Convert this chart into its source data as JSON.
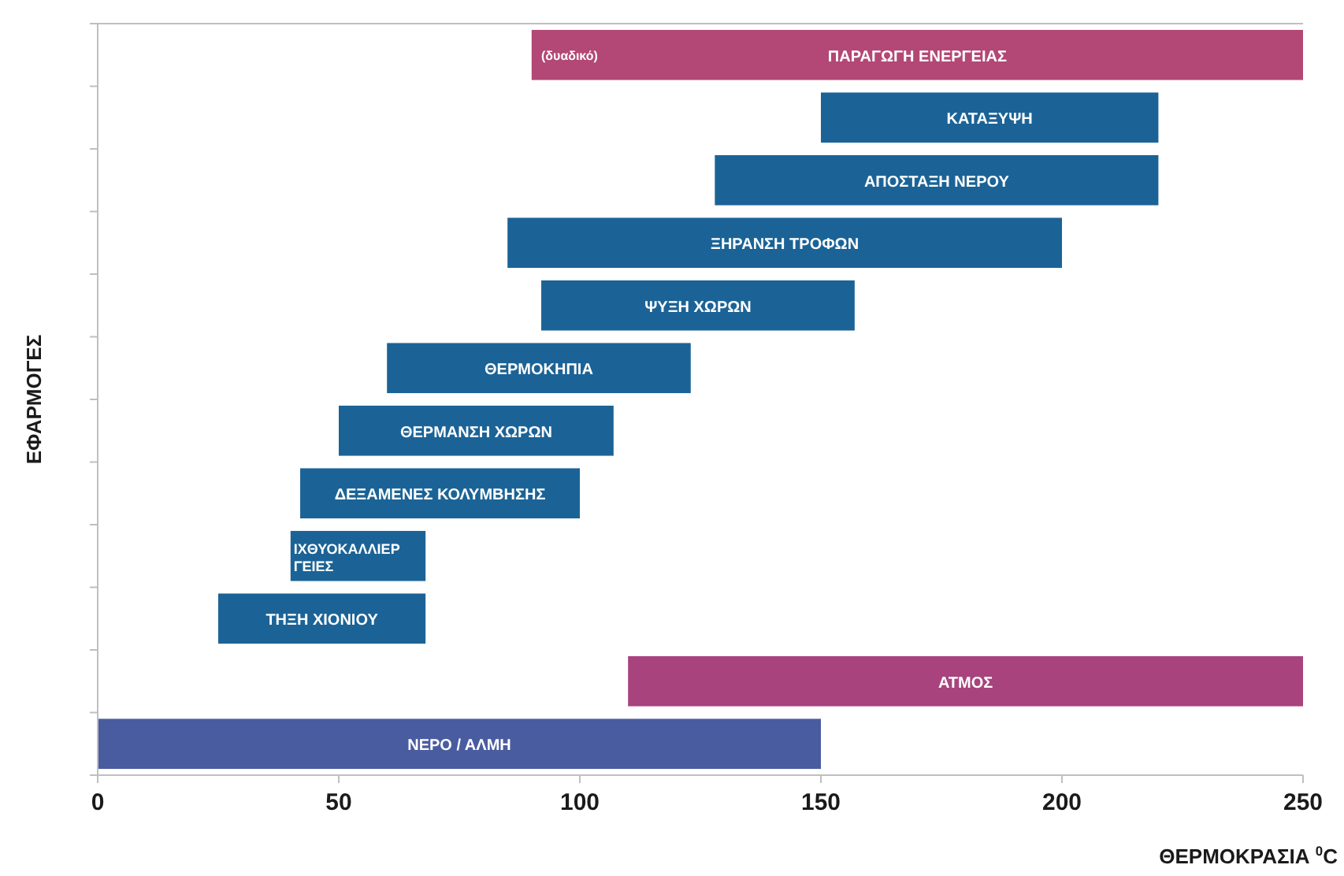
{
  "chart_data": {
    "type": "bar",
    "orientation": "horizontal",
    "xlabel": "ΘΕΡΜΟΚΡΑΣΙΑ $^{0}$C",
    "ylabel": "ΕΦΑΡΜΟΓΕΣ",
    "categories": [
      "ΠΑΡΑΓΩΓΗ ΕΝΕΡΓΕΙΑΣ",
      "ΚΑΤΑΞΥΨΗ",
      "ΑΠΟΣΤΑΞΗ ΝΕΡΟΥ",
      "ΞΗΡΑΝΣΗ ΤΡΟΦΩΝ",
      "ΨΥΞΗ ΧΩΡΩΝ",
      "ΘΕΡΜΟΚΗΠΙΑ",
      "ΘΕΡΜΑΝΣΗ ΧΩΡΩΝ",
      "ΔΕΞΑΜΕΝΕΣ ΚΟΛΥΜΒΗΣΗΣ",
      "ΙΧΘΥΟΚΑΛΛΙΕΡΓΕΙΕΣ",
      "ΤΗΞΗ ΧΙΟΝΙΟΥ",
      "ΑΤΜΟΣ",
      "ΝΕΡΟ / ΑΛΜΗ"
    ],
    "base": [
      90,
      150,
      128,
      85,
      92,
      60,
      50,
      42,
      40,
      25,
      110,
      0
    ],
    "values": [
      160,
      70,
      92,
      115,
      65,
      63,
      57,
      58,
      28,
      43,
      140,
      150
    ],
    "colors": [
      "#b34775",
      "#1b6396",
      "#1b6396",
      "#1b6396",
      "#1b6396",
      "#1b6396",
      "#1b6396",
      "#1b6396",
      "#1b6396",
      "#1b6396",
      "#a8437e",
      "#4a5ca0"
    ],
    "annotations": [
      {
        "text": "(δυαδικό)",
        "x": 92,
        "y": "ΠΑΡΑΓΩΓΗ ΕΝΕΡΓΕΙΑΣ"
      }
    ],
    "xlim": [
      0,
      250
    ],
    "xticks": [
      0,
      50,
      100,
      150,
      200,
      250
    ],
    "tick_labels": "x"
  }
}
